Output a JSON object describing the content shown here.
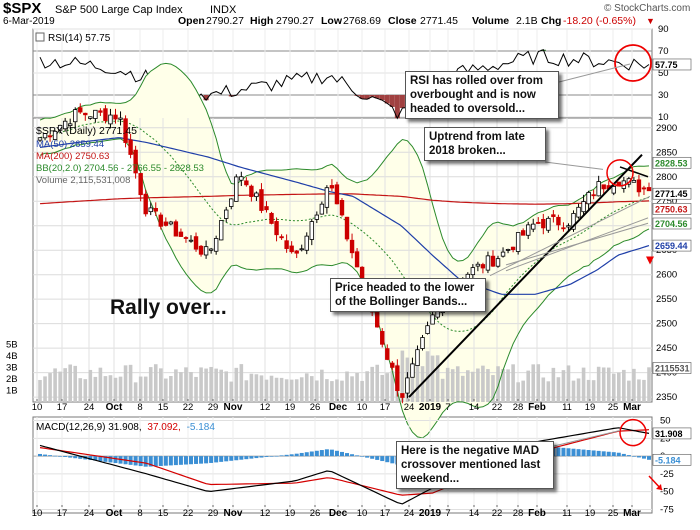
{
  "header": {
    "symbol": "$SPX",
    "name": "S&P 500 Large Cap Index",
    "exchange": "INDX",
    "date": "6-Mar-2019",
    "open_label": "Open",
    "open": "2790.27",
    "high_label": "High",
    "high": "2790.27",
    "low_label": "Low",
    "low": "2768.69",
    "close_label": "Close",
    "close": "2771.45",
    "volume_label": "Volume",
    "volume": "2.1B",
    "chg_label": "Chg",
    "chg": "-18.20 (-0.65%)",
    "chg_arrow": "▼",
    "copyright": "© StockCharts.com"
  },
  "rsi_panel": {
    "label": "RSI(14) 57.75",
    "axis_ticks": [
      "90",
      "70",
      "50",
      "30",
      "10"
    ],
    "current_value_badge": "57.75",
    "callout_text": "RSI has rolled over from overbought and is now headed to oversold..."
  },
  "price_panel": {
    "legend": {
      "title": "$SPX (Daily) 2771.45",
      "ma50": "MA(50) 2659.44",
      "ma200": "MA(200) 2750.63",
      "bb": "BB(20,2.0) 2704.56 - 2766.55 - 2828.53",
      "volume": "Volume 2,115,531,008"
    },
    "axis_ticks": [
      "2900",
      "2850",
      "2800",
      "2750",
      "2700",
      "2650",
      "2600",
      "2550",
      "2500",
      "2450",
      "2400",
      "2350"
    ],
    "volume_ticks": [
      "5B",
      "4B",
      "3B",
      "2B",
      "1B"
    ],
    "value_badges": {
      "bb_upper": "2828.53",
      "close": "2771.45",
      "ma200": "2750.63",
      "bb_lower": "2704.56",
      "ma50": "2659.44",
      "volume": "2115531"
    },
    "callouts": {
      "uptrend": "Uptrend from late 2018 broken...",
      "bollinger": "Price headed to the lower of the Bollinger Bands...",
      "rally": "Rally over..."
    },
    "colors": {
      "up": "#000000",
      "down": "#cc0000",
      "ma50": "#1f3fa8",
      "ma200": "#c41515",
      "bb": "#2b8a2b",
      "bb_mid": "#2b8a2b",
      "volume": "#c9c9c9",
      "band_fill": "#ffffe9"
    }
  },
  "macd_panel": {
    "label": "MACD(12,26,9) 31.908, 37.092, -5.184",
    "label_prefix": "MACD(12,26,9) 31.908,",
    "label_signal": "37.092,",
    "label_hist": "-5.184",
    "axis_ticks": [
      "50",
      "25",
      "0",
      "-25",
      "-50",
      "-75"
    ],
    "value_badges": {
      "macd": "31.908",
      "hist": "-5.184"
    },
    "callout_text": "Here is the negative MAD crossover mentioned last weekend...",
    "colors": {
      "macd": "#000000",
      "signal": "#d40000",
      "histogram": "#3b8fd4"
    }
  },
  "x_axis": [
    "10",
    "17",
    "24",
    "Oct",
    "8",
    "15",
    "22",
    "29",
    "Nov",
    "12",
    "19",
    "26",
    "Dec",
    "10",
    "17",
    "24",
    "2019",
    "7",
    "14",
    "22",
    "28",
    "Feb",
    "11",
    "19",
    "25",
    "Mar"
  ],
  "chart_data": [
    {
      "type": "line",
      "title": "RSI(14)",
      "ylim": [
        10,
        90
      ],
      "x": [
        "2018-09-10",
        "2018-10-01",
        "2018-10-29",
        "2018-12-03",
        "2018-12-24",
        "2019-01-02",
        "2019-02-01",
        "2019-03-06"
      ],
      "series": [
        {
          "name": "RSI(14)",
          "values": [
            62,
            55,
            30,
            48,
            12,
            45,
            65,
            57.75
          ]
        }
      ]
    },
    {
      "type": "line",
      "title": "$SPX (Daily) 2771.45",
      "ylim": [
        2340,
        2920
      ],
      "x": [
        "2018-09-10",
        "2018-09-21",
        "2018-10-03",
        "2018-10-11",
        "2018-10-29",
        "2018-11-07",
        "2018-11-23",
        "2018-12-03",
        "2018-12-10",
        "2018-12-24",
        "2019-01-02",
        "2019-01-10",
        "2019-01-22",
        "2019-02-01",
        "2019-02-11",
        "2019-02-19",
        "2019-02-25",
        "2019-03-06"
      ],
      "series": [
        {
          "name": "$SPX (Daily)",
          "values": [
            2880,
            2930,
            2925,
            2730,
            2640,
            2810,
            2630,
            2790,
            2640,
            2350,
            2510,
            2595,
            2640,
            2705,
            2710,
            2780,
            2795,
            2771.45
          ]
        },
        {
          "name": "MA(50)",
          "values": [
            2860,
            2870,
            2880,
            2870,
            2840,
            2820,
            2790,
            2770,
            2760,
            2700,
            2640,
            2590,
            2560,
            2560,
            2580,
            2610,
            2640,
            2659.44
          ]
        },
        {
          "name": "MA(200)",
          "values": [
            2745,
            2750,
            2755,
            2757,
            2760,
            2762,
            2764,
            2765,
            2765,
            2760,
            2752,
            2748,
            2745,
            2744,
            2745,
            2747,
            2749,
            2750.63
          ]
        }
      ]
    },
    {
      "type": "line",
      "title": "MACD(12,26,9)",
      "ylim": [
        -80,
        55
      ],
      "x": [
        "2018-09-10",
        "2018-10-11",
        "2018-10-29",
        "2018-11-23",
        "2018-12-03",
        "2018-12-24",
        "2019-01-02",
        "2019-02-01",
        "2019-02-25",
        "2019-03-06"
      ],
      "series": [
        {
          "name": "MACD",
          "values": [
            15,
            -25,
            -50,
            -35,
            -20,
            -68,
            -45,
            20,
            40,
            31.908
          ]
        },
        {
          "name": "Signal",
          "values": [
            12,
            -10,
            -40,
            -38,
            -30,
            -55,
            -52,
            5,
            35,
            37.092
          ]
        },
        {
          "name": "Histogram",
          "values": [
            3,
            -15,
            -10,
            3,
            10,
            -13,
            7,
            15,
            5,
            -5.184
          ]
        }
      ]
    }
  ]
}
